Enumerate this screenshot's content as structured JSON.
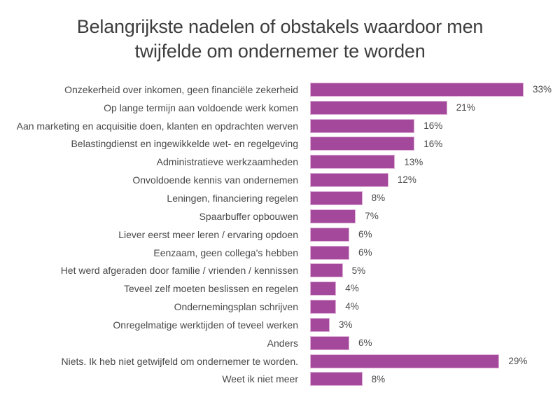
{
  "title": {
    "line1": "Belangrijkste nadelen of obstakels waardoor men",
    "line2": "twijfelde om ondernemer te worden"
  },
  "chart_data": {
    "type": "bar",
    "orientation": "horizontal",
    "title": "Belangrijkste nadelen of obstakels waardoor men twijfelde om ondernemer te worden",
    "categories": [
      "Onzekerheid over inkomen, geen financiële zekerheid",
      "Op lange termijn aan voldoende werk komen",
      "Aan marketing en acquisitie doen, klanten en opdrachten werven",
      "Belastingdienst en ingewikkelde wet- en regelgeving",
      "Administratieve werkzaamheden",
      "Onvoldoende kennis van ondernemen",
      "Leningen, financiering regelen",
      "Spaarbuffer opbouwen",
      "Liever eerst meer leren / ervaring opdoen",
      "Eenzaam, geen collega's hebben",
      "Het werd afgeraden door familie / vrienden / kennissen",
      "Teveel zelf moeten beslissen en regelen",
      "Ondernemingsplan schrijven",
      "Onregelmatige werktijden of teveel werken",
      "Anders",
      "Niets. Ik heb niet getwijfeld om ondernemer te worden.",
      "Weet ik niet meer"
    ],
    "values": [
      33,
      21,
      16,
      16,
      13,
      12,
      8,
      7,
      6,
      6,
      5,
      4,
      4,
      3,
      6,
      29,
      8
    ],
    "data_labels": [
      "33%",
      "21%",
      "16%",
      "16%",
      "13%",
      "12%",
      "8%",
      "7%",
      "6%",
      "6%",
      "5%",
      "4%",
      "4%",
      "3%",
      "6%",
      "29%",
      "8%"
    ],
    "value_suffix": "%",
    "xlabel": "",
    "ylabel": "",
    "xlim": [
      0,
      37
    ],
    "grid": false,
    "legend": false,
    "bar_color": "#a3489b",
    "bar_border_color": "#ddaed6",
    "label_color": "#484848",
    "title_color": "#3d3d3d"
  }
}
